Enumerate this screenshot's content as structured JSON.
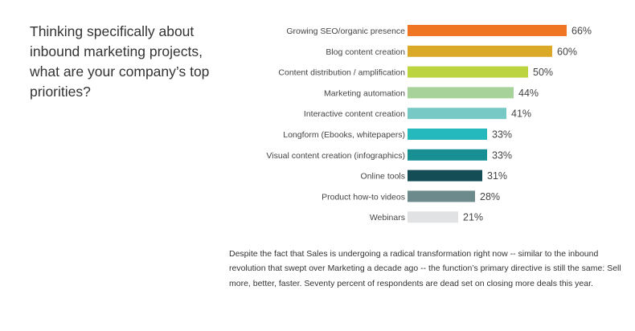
{
  "title": "Thinking specifically about inbound marketing projects, what are your company’s top priorities?",
  "caption": "Despite the fact that Sales is undergoing a radical transformation right now -- similar to the inbound revolution that swept over Marketing a decade ago -- the function’s primary directive is still the same: Sell more, better, faster. Seventy percent of respondents are dead set on closing more deals this year.",
  "chart_data": {
    "type": "bar",
    "orientation": "horizontal",
    "title": "Thinking specifically about inbound marketing projects, what are your company’s top priorities?",
    "xlabel": "",
    "ylabel": "",
    "xlim": [
      0,
      100
    ],
    "grid": false,
    "categories": [
      "Growing SEO/organic presence",
      "Blog content creation",
      "Content distribution / amplification",
      "Marketing automation",
      "Interactive content creation",
      "Longform (Ebooks, whitepapers)",
      "Visual content creation (infographics)",
      "Online tools",
      "Product how-to videos",
      "Webinars"
    ],
    "values": [
      66,
      60,
      50,
      44,
      41,
      33,
      33,
      31,
      28,
      21
    ],
    "value_labels": [
      "66%",
      "60%",
      "50%",
      "44%",
      "41%",
      "33%",
      "33%",
      "31%",
      "28%",
      "21%"
    ],
    "colors": [
      "#f07522",
      "#d9a927",
      "#bcd43f",
      "#a7d39a",
      "#76c9c4",
      "#25b8bc",
      "#178f93",
      "#154d57",
      "#6c8a8c",
      "#e1e2e3"
    ]
  }
}
